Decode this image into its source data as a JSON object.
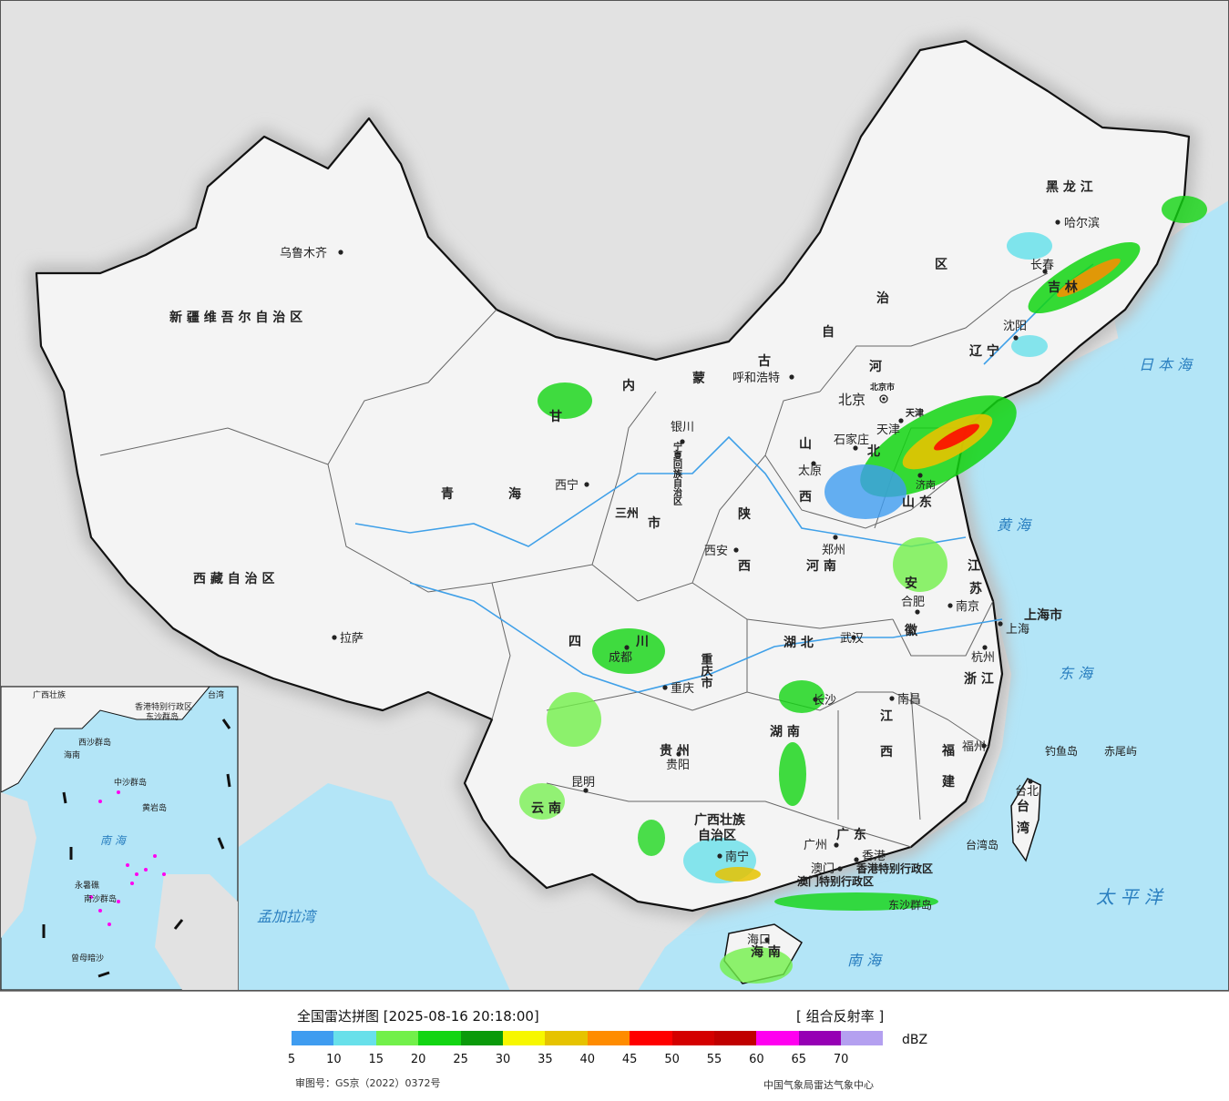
{
  "legend": {
    "title": "全国雷达拼图 [2025-08-16 20:18:00]",
    "product": "[ 组合反射率 ]",
    "unit": "dBZ",
    "colors": [
      "#3f9cf0",
      "#68e0ea",
      "#72f04a",
      "#12d512",
      "#0a9a0a",
      "#f7f700",
      "#e6c300",
      "#ff8c00",
      "#ff0000",
      "#d40000",
      "#c00000",
      "#ff00f0",
      "#9600b4",
      "#b4a0f0"
    ],
    "ticks": [
      "5",
      "10",
      "15",
      "20",
      "25",
      "30",
      "35",
      "40",
      "45",
      "50",
      "55",
      "60",
      "65",
      "70"
    ],
    "approval": "审图号：GS京（2022）0372号",
    "source": "中国气象局雷达气象中心"
  },
  "map": {
    "colors": {
      "land": "#f4f4f4",
      "sea": "#b3e5f7",
      "outside": "#e2e2e2",
      "border": "#111111",
      "river": "#3fa0e8"
    },
    "regions": [
      {
        "id": "xinjiang",
        "text": "新 疆 维 吾 尔 自 治 区"
      },
      {
        "id": "xizang",
        "text": "西 藏 自 治 区"
      },
      {
        "id": "qinghai1",
        "text": "青"
      },
      {
        "id": "qinghai2",
        "text": "海"
      },
      {
        "id": "gansu",
        "text": "甘"
      },
      {
        "id": "nmg1",
        "text": "内"
      },
      {
        "id": "nmg2",
        "text": "蒙"
      },
      {
        "id": "nmg3",
        "text": "古"
      },
      {
        "id": "nmg4",
        "text": "自"
      },
      {
        "id": "nmg5",
        "text": "治"
      },
      {
        "id": "nmg6",
        "text": "区"
      },
      {
        "id": "heilongjiang",
        "text": "黑 龙 江"
      },
      {
        "id": "jilin",
        "text": "吉 林"
      },
      {
        "id": "liaoning",
        "text": "辽 宁"
      },
      {
        "id": "hebei1",
        "text": "河"
      },
      {
        "id": "hebei2",
        "text": "北"
      },
      {
        "id": "shanxi1",
        "text": "山"
      },
      {
        "id": "shanxi2",
        "text": "西"
      },
      {
        "id": "shandong",
        "text": "山 东"
      },
      {
        "id": "shaanxi1",
        "text": "陕"
      },
      {
        "id": "shaanxi2",
        "text": "西"
      },
      {
        "id": "ningxia",
        "text": "宁夏回族自治区"
      },
      {
        "id": "henan",
        "text": "河 南"
      },
      {
        "id": "jiangsu1",
        "text": "江"
      },
      {
        "id": "jiangsu2",
        "text": "苏"
      },
      {
        "id": "anhui1",
        "text": "安"
      },
      {
        "id": "anhui2",
        "text": "徽"
      },
      {
        "id": "hubei",
        "text": "湖 北"
      },
      {
        "id": "sichuan1",
        "text": "四"
      },
      {
        "id": "sichuan2",
        "text": "川"
      },
      {
        "id": "chongqing",
        "text": "重庆市"
      },
      {
        "id": "zhejiang",
        "text": "浙 江"
      },
      {
        "id": "jiangxi1",
        "text": "江"
      },
      {
        "id": "jiangxi2",
        "text": "西"
      },
      {
        "id": "hunan",
        "text": "湖 南"
      },
      {
        "id": "guizhou",
        "text": "贵 州"
      },
      {
        "id": "fujian1",
        "text": "福"
      },
      {
        "id": "fujian2",
        "text": "建"
      },
      {
        "id": "yunnan",
        "text": "云 南"
      },
      {
        "id": "guangxi1",
        "text": "广西壮族"
      },
      {
        "id": "guangxi2",
        "text": "自治区"
      },
      {
        "id": "guangdong",
        "text": "广 东"
      },
      {
        "id": "taiwan1",
        "text": "台"
      },
      {
        "id": "taiwan2",
        "text": "湾"
      },
      {
        "id": "hainan",
        "text": "海 南"
      },
      {
        "id": "shanghai",
        "text": "上海市"
      },
      {
        "id": "tianjin",
        "text": "天津"
      },
      {
        "id": "beijingshi",
        "text": "北京市"
      },
      {
        "id": "hk",
        "text": "香港特别行政区"
      },
      {
        "id": "macao",
        "text": "澳门特别行政区"
      },
      {
        "id": "gansu3",
        "text": "三州"
      },
      {
        "id": "gansu4",
        "text": "市"
      }
    ],
    "cities": [
      {
        "id": "urumqi",
        "text": "乌鲁木齐"
      },
      {
        "id": "lhasa",
        "text": "拉萨"
      },
      {
        "id": "xining",
        "text": "西宁"
      },
      {
        "id": "yinchuan",
        "text": "银川"
      },
      {
        "id": "hohhot",
        "text": "呼和浩特"
      },
      {
        "id": "beijing",
        "text": "北京"
      },
      {
        "id": "tianjin_c",
        "text": "天津"
      },
      {
        "id": "shijiazhuang",
        "text": "石家庄"
      },
      {
        "id": "taiyuan",
        "text": "太原"
      },
      {
        "id": "xian",
        "text": "西安"
      },
      {
        "id": "zhengzhou",
        "text": "郑州"
      },
      {
        "id": "jinan",
        "text": "济南"
      },
      {
        "id": "harbin",
        "text": "哈尔滨"
      },
      {
        "id": "changchun",
        "text": "长春"
      },
      {
        "id": "shenyang",
        "text": "沈阳"
      },
      {
        "id": "nanjing",
        "text": "南京"
      },
      {
        "id": "hefei",
        "text": "合肥"
      },
      {
        "id": "shanghai_c",
        "text": "上海"
      },
      {
        "id": "hangzhou",
        "text": "杭州"
      },
      {
        "id": "wuhan",
        "text": "武汉"
      },
      {
        "id": "chengdu",
        "text": "成都"
      },
      {
        "id": "chongqing_c",
        "text": "重庆"
      },
      {
        "id": "changsha",
        "text": "长沙"
      },
      {
        "id": "nanchang",
        "text": "南昌"
      },
      {
        "id": "fuzhou",
        "text": "福州"
      },
      {
        "id": "guiyang",
        "text": "贵阳"
      },
      {
        "id": "kunming",
        "text": "昆明"
      },
      {
        "id": "nanning",
        "text": "南宁"
      },
      {
        "id": "guangzhou",
        "text": "广州"
      },
      {
        "id": "hongkong",
        "text": "香港"
      },
      {
        "id": "macau",
        "text": "澳门"
      },
      {
        "id": "taibei",
        "text": "台北"
      },
      {
        "id": "haikou",
        "text": "海口"
      }
    ],
    "islands": [
      {
        "id": "diaoyu",
        "text": "钓鱼岛"
      },
      {
        "id": "chiwei",
        "text": "赤尾屿"
      },
      {
        "id": "taiwandao",
        "text": "台湾岛"
      },
      {
        "id": "dongsha",
        "text": "东沙群岛"
      }
    ],
    "seas": [
      {
        "id": "riben",
        "text": "日 本 海"
      },
      {
        "id": "huanghai",
        "text": "黄 海"
      },
      {
        "id": "donghai",
        "text": "东 海"
      },
      {
        "id": "taipingyang",
        "text": "太 平 洋"
      },
      {
        "id": "nanhai",
        "text": "南 海"
      },
      {
        "id": "mengjiala",
        "text": "孟加拉湾"
      }
    ],
    "inset": [
      {
        "id": "inset-xisha",
        "text": "中沙群岛"
      },
      {
        "id": "inset-huangyan",
        "text": "黄岩岛"
      },
      {
        "id": "inset-nanhai",
        "text": "南 海"
      },
      {
        "id": "inset-nansha",
        "text": "南沙群岛"
      },
      {
        "id": "inset-zengmu",
        "text": "曾母暗沙"
      },
      {
        "id": "inset-yongshu",
        "text": "永暑礁"
      },
      {
        "id": "inset-dongsha",
        "text": "东沙群岛"
      },
      {
        "id": "inset-xisha2",
        "text": "西沙群岛"
      },
      {
        "id": "inset-hk",
        "text": "香港特别行政区"
      },
      {
        "id": "inset-taiwan",
        "text": "台湾"
      },
      {
        "id": "inset-guangxi",
        "text": "广西壮族"
      },
      {
        "id": "inset-hainan",
        "text": "海南"
      }
    ]
  }
}
